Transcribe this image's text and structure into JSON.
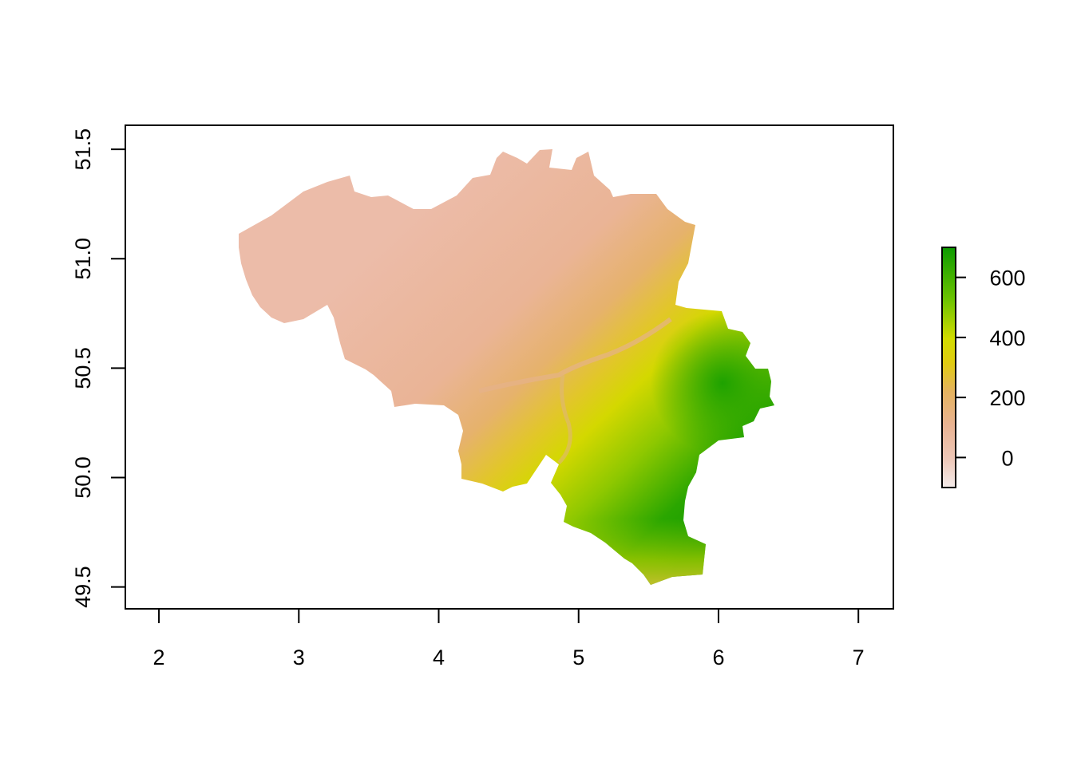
{
  "chart_data": {
    "type": "heatmap",
    "x_ticks": [
      "2",
      "3",
      "4",
      "5",
      "6",
      "7"
    ],
    "y_ticks": [
      "49.5",
      "50.0",
      "50.5",
      "51.0",
      "51.5"
    ],
    "xlim": [
      1.76,
      7.25
    ],
    "ylim": [
      49.4,
      51.61
    ],
    "legend": {
      "ticks": [
        "0",
        "200",
        "400",
        "600"
      ],
      "range": [
        -100,
        700
      ],
      "placement": "right"
    },
    "colors": {
      "low": "#f2e4e2",
      "sea_level": "#ecbca8",
      "mid": "#e7b57a",
      "yellow": "#dfdd00",
      "green": "#12a000"
    }
  }
}
